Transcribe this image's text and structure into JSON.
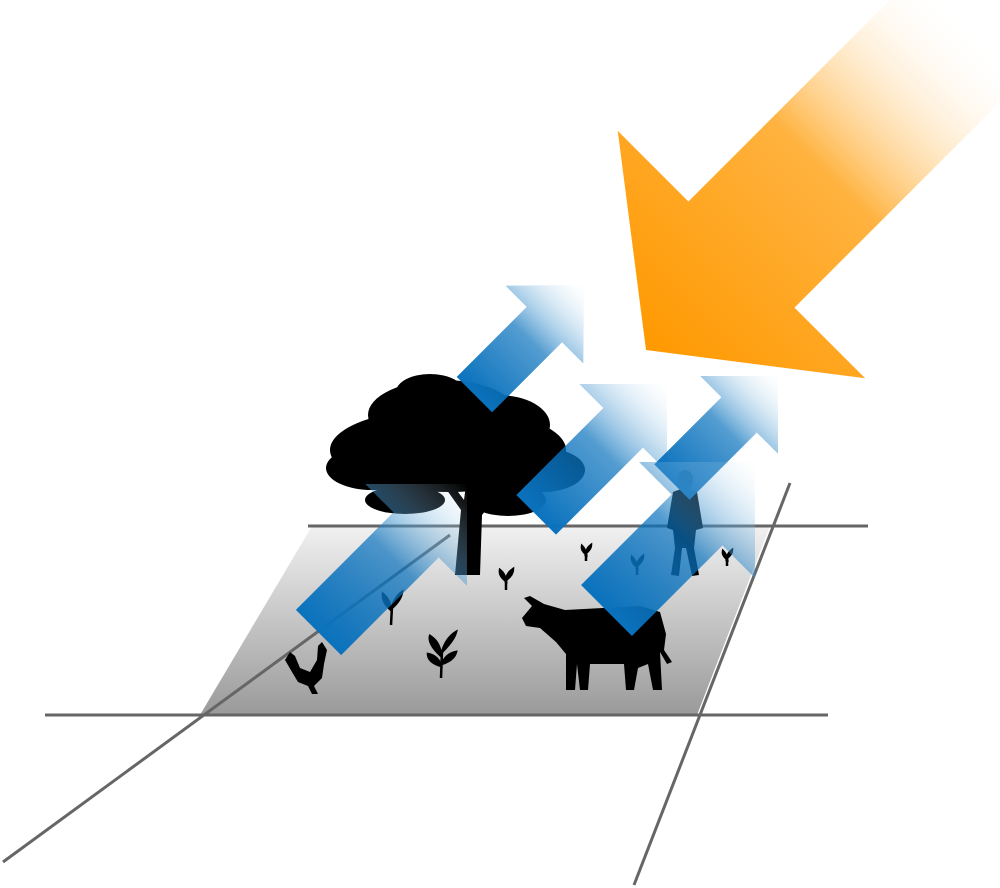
{
  "diagram": {
    "colors": {
      "background": "#ffffff",
      "ground_light": "#f1f1f1",
      "ground_dark": "#9a9a9a",
      "grid_line": "#666666",
      "silhouette": "#000000",
      "incoming_arrow_solid": "#ff9900",
      "incoming_arrow_fade": "#ffffff",
      "outgoing_arrow_solid": "#0a72bd",
      "outgoing_arrow_fade": "#d8ecf8"
    },
    "incoming_arrow": {
      "icon": "sun-radiation-arrow-icon",
      "direction": "down-left"
    },
    "outgoing_arrows": [
      {
        "icon": "emission-arrow-icon",
        "direction": "up-right"
      },
      {
        "icon": "emission-arrow-icon",
        "direction": "up-right"
      },
      {
        "icon": "emission-arrow-icon",
        "direction": "up-right"
      },
      {
        "icon": "emission-arrow-icon",
        "direction": "up-right"
      },
      {
        "icon": "emission-arrow-icon",
        "direction": "up-right"
      },
      {
        "icon": "emission-arrow-icon",
        "direction": "up-right"
      }
    ],
    "ground_objects": [
      "tree-icon",
      "person-icon",
      "cow-icon",
      "rooster-icon",
      "sprout-icon"
    ]
  }
}
